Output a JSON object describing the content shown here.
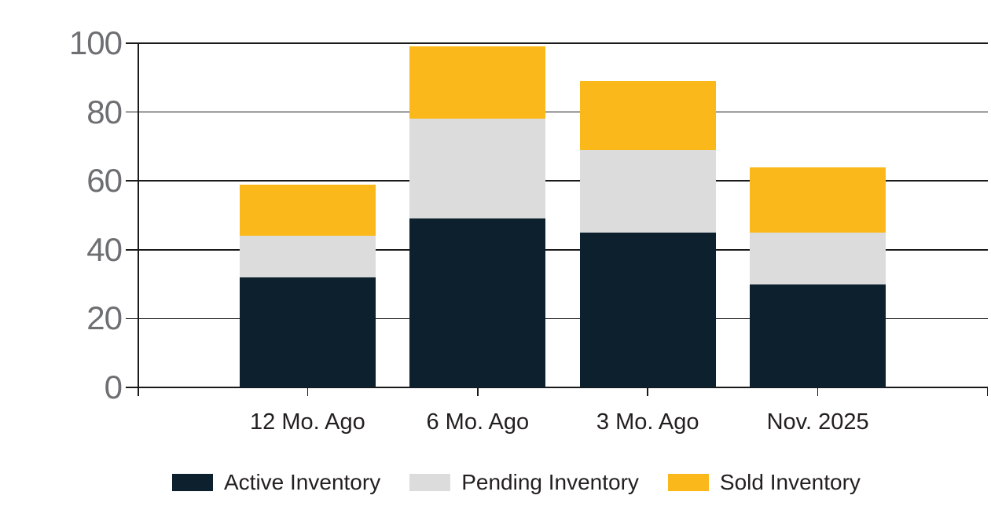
{
  "chart_data": {
    "type": "bar",
    "stacked": true,
    "title": "",
    "categories": [
      "12 Mo. Ago",
      "6 Mo. Ago",
      "3 Mo. Ago",
      "Nov. 2025"
    ],
    "series": [
      {
        "name": "Active Inventory",
        "color": "#0d202d",
        "values": [
          32,
          49,
          45,
          30
        ]
      },
      {
        "name": "Pending Inventory",
        "color": "#dcdcdc",
        "values": [
          12,
          29,
          24,
          15
        ]
      },
      {
        "name": "Sold Inventory",
        "color": "#fbb81b",
        "values": [
          15,
          21,
          20,
          19
        ]
      }
    ],
    "totals": [
      59,
      99,
      89,
      64
    ],
    "ylim": [
      0,
      100
    ],
    "yticks": [
      0,
      20,
      40,
      60,
      80,
      100
    ],
    "grid": true,
    "legend_position": "bottom",
    "colors": {
      "axis_line": "#1a1a1a",
      "y_tick_label": "#6e6f72",
      "category_label": "#231f20",
      "background": "#ffffff"
    }
  }
}
